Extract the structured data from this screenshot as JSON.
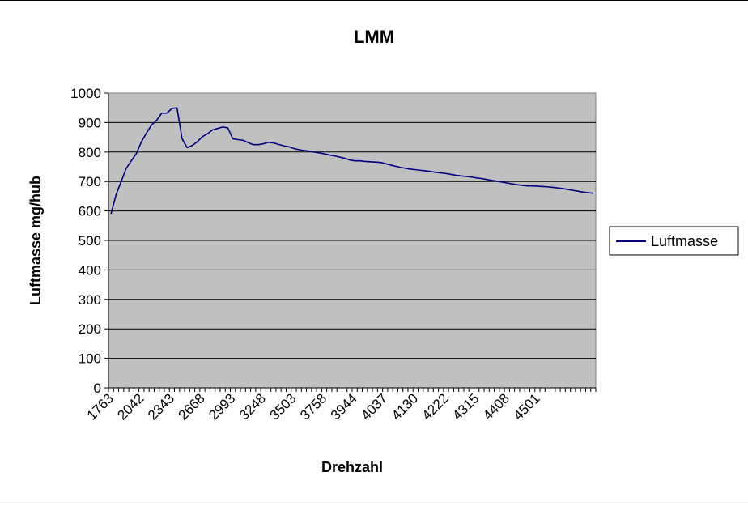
{
  "chart_data": {
    "type": "line",
    "title": "LMM",
    "xlabel": "Drehzahl",
    "ylabel": "Luftmasse mg/hub",
    "ylim": [
      0,
      1000
    ],
    "yticks": [
      0,
      100,
      200,
      300,
      400,
      500,
      600,
      700,
      800,
      900,
      1000
    ],
    "xtick_labels": [
      "1763",
      "2042",
      "2343",
      "2668",
      "2993",
      "3248",
      "3503",
      "3758",
      "3944",
      "4037",
      "4130",
      "4222",
      "4315",
      "4408",
      "4501"
    ],
    "grid": true,
    "legend_position": "right",
    "plot_background": "#c0c0c0",
    "series": [
      {
        "name": "Luftmasse",
        "color": "#000080",
        "values": [
          590,
          655,
          700,
          745,
          770,
          795,
          835,
          865,
          892,
          908,
          932,
          932,
          948,
          950,
          845,
          815,
          822,
          835,
          852,
          862,
          875,
          880,
          885,
          882,
          845,
          842,
          840,
          832,
          825,
          825,
          828,
          833,
          831,
          826,
          821,
          818,
          812,
          808,
          805,
          803,
          800,
          797,
          794,
          790,
          787,
          783,
          779,
          773,
          770,
          770,
          768,
          767,
          766,
          765,
          761,
          756,
          752,
          748,
          745,
          742,
          740,
          738,
          736,
          734,
          731,
          729,
          727,
          724,
          721,
          719,
          717,
          715,
          712,
          710,
          707,
          704,
          701,
          698,
          695,
          692,
          689,
          687,
          685,
          685,
          684,
          683,
          682,
          680,
          678,
          676,
          673,
          670,
          667,
          664,
          662,
          660
        ]
      }
    ]
  }
}
